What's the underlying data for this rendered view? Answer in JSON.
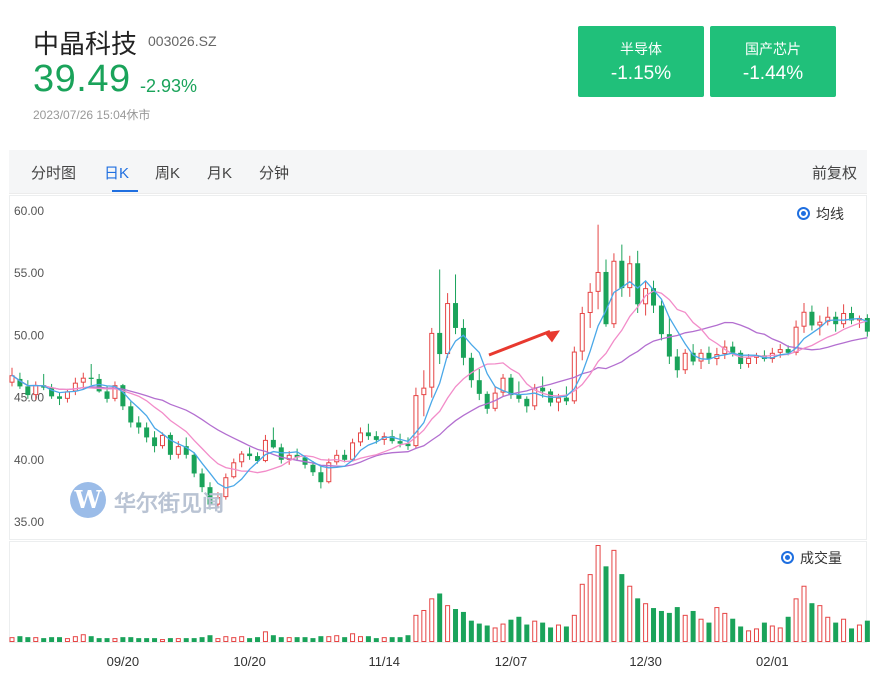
{
  "header": {
    "name": "中晶科技",
    "code": "003026.SZ",
    "price": "39.49",
    "change_pct": "-2.93%",
    "timestamp": "2023/07/26 15:04休市"
  },
  "sectors": [
    {
      "name": "半导体",
      "change": "-1.15%"
    },
    {
      "name": "国产芯片",
      "change": "-1.44%"
    }
  ],
  "tabs": [
    {
      "label": "分时图",
      "active": false
    },
    {
      "label": "日K",
      "active": true
    },
    {
      "label": "周K",
      "active": false
    },
    {
      "label": "月K",
      "active": false
    },
    {
      "label": "分钟",
      "active": false
    }
  ],
  "adjust_label": "前复权",
  "legends": {
    "ma": "均线",
    "volume": "成交量"
  },
  "watermark": {
    "logo_letter": "W",
    "text": "华尔街见闻"
  },
  "colors": {
    "up": "#e64545",
    "down": "#1aa35a",
    "ma5": "#4aa8e8",
    "ma10": "#f28cc9",
    "ma20": "#b36fd0",
    "accent": "#1f6fe0",
    "sector_bg": "#20c07a"
  },
  "chart_data": {
    "type": "candlestick",
    "y_axis": {
      "ticks": [
        "60.00",
        "55.00",
        "50.00",
        "45.00",
        "40.00",
        "35.00"
      ],
      "range": [
        35,
        60
      ]
    },
    "x_axis": {
      "labels": [
        "09/20",
        "10/20",
        "11/14",
        "12/07",
        "12/30",
        "02/01"
      ]
    },
    "annotation": "red arrow pointing at the breakout candle near 12/15",
    "candles": [
      [
        46.2,
        47.4,
        45.9,
        46.8
      ],
      [
        46.5,
        47.0,
        45.7,
        45.9
      ],
      [
        45.9,
        46.4,
        44.9,
        45.2
      ],
      [
        45.2,
        46.3,
        44.8,
        46.0
      ],
      [
        46.0,
        46.9,
        45.6,
        45.8
      ],
      [
        45.8,
        46.1,
        44.9,
        45.1
      ],
      [
        45.1,
        45.4,
        44.4,
        44.9
      ],
      [
        44.9,
        45.7,
        44.6,
        45.5
      ],
      [
        45.5,
        46.6,
        45.2,
        46.2
      ],
      [
        46.2,
        47.0,
        45.7,
        46.6
      ],
      [
        46.6,
        47.7,
        46.0,
        46.5
      ],
      [
        46.5,
        46.9,
        45.4,
        45.5
      ],
      [
        45.5,
        45.9,
        44.6,
        44.9
      ],
      [
        44.9,
        46.3,
        44.7,
        46.0
      ],
      [
        46.0,
        46.1,
        44.0,
        44.3
      ],
      [
        44.3,
        44.7,
        42.6,
        43.0
      ],
      [
        43.0,
        43.5,
        42.1,
        42.6
      ],
      [
        42.6,
        43.0,
        41.4,
        41.8
      ],
      [
        41.8,
        42.3,
        40.6,
        41.1
      ],
      [
        41.1,
        42.2,
        40.9,
        42.0
      ],
      [
        42.0,
        42.2,
        40.0,
        40.4
      ],
      [
        40.4,
        41.5,
        40.1,
        41.1
      ],
      [
        41.1,
        41.8,
        40.1,
        40.4
      ],
      [
        40.4,
        40.6,
        38.6,
        38.9
      ],
      [
        38.9,
        39.3,
        37.4,
        37.8
      ],
      [
        37.8,
        38.2,
        36.0,
        36.4
      ],
      [
        36.4,
        37.4,
        36.1,
        37.0
      ],
      [
        37.0,
        38.9,
        36.8,
        38.6
      ],
      [
        38.6,
        40.1,
        38.5,
        39.8
      ],
      [
        39.8,
        40.7,
        39.4,
        40.5
      ],
      [
        40.5,
        41.0,
        40.0,
        40.3
      ],
      [
        40.3,
        40.6,
        39.7,
        39.9
      ],
      [
        39.9,
        42.0,
        39.8,
        41.6
      ],
      [
        41.6,
        42.6,
        40.9,
        41.0
      ],
      [
        41.0,
        41.3,
        39.7,
        40.0
      ],
      [
        40.0,
        40.7,
        39.6,
        40.4
      ],
      [
        40.4,
        40.9,
        39.9,
        40.2
      ],
      [
        40.2,
        40.3,
        39.3,
        39.6
      ],
      [
        39.6,
        39.9,
        38.7,
        39.0
      ],
      [
        39.0,
        39.5,
        37.7,
        38.2
      ],
      [
        38.2,
        40.1,
        38.1,
        39.8
      ],
      [
        39.8,
        40.8,
        39.6,
        40.4
      ],
      [
        40.4,
        40.8,
        39.8,
        40.0
      ],
      [
        40.0,
        41.7,
        39.9,
        41.4
      ],
      [
        41.4,
        42.6,
        41.1,
        42.2
      ],
      [
        42.2,
        42.9,
        41.6,
        41.9
      ],
      [
        41.9,
        42.3,
        41.3,
        41.6
      ],
      [
        41.6,
        42.2,
        41.2,
        41.9
      ],
      [
        41.9,
        42.4,
        41.3,
        41.5
      ],
      [
        41.5,
        42.1,
        41.0,
        41.3
      ],
      [
        41.3,
        41.8,
        40.8,
        41.1
      ],
      [
        41.1,
        45.8,
        40.9,
        45.2
      ],
      [
        45.2,
        47.2,
        43.5,
        45.8
      ],
      [
        45.8,
        50.6,
        45.0,
        50.2
      ],
      [
        50.2,
        55.3,
        47.7,
        48.5
      ],
      [
        48.5,
        53.4,
        48.2,
        52.6
      ],
      [
        52.6,
        54.9,
        50.1,
        50.6
      ],
      [
        50.6,
        51.3,
        47.6,
        48.2
      ],
      [
        48.2,
        48.6,
        45.8,
        46.4
      ],
      [
        46.4,
        47.3,
        44.8,
        45.3
      ],
      [
        45.3,
        45.5,
        43.7,
        44.1
      ],
      [
        44.1,
        45.9,
        43.9,
        45.4
      ],
      [
        45.4,
        46.9,
        45.1,
        46.6
      ],
      [
        46.6,
        46.9,
        44.9,
        45.2
      ],
      [
        45.2,
        46.3,
        44.6,
        44.9
      ],
      [
        44.9,
        45.1,
        43.8,
        44.3
      ],
      [
        44.3,
        46.1,
        44.0,
        45.8
      ],
      [
        45.8,
        46.7,
        45.0,
        45.5
      ],
      [
        45.5,
        45.7,
        44.3,
        44.6
      ],
      [
        44.6,
        45.3,
        43.9,
        45.0
      ],
      [
        45.0,
        45.9,
        44.4,
        44.7
      ],
      [
        44.7,
        49.1,
        44.5,
        48.7
      ],
      [
        48.7,
        52.3,
        48.0,
        51.8
      ],
      [
        51.8,
        54.2,
        50.6,
        53.5
      ],
      [
        53.5,
        58.9,
        52.1,
        55.1
      ],
      [
        55.1,
        56.1,
        50.7,
        50.9
      ],
      [
        50.9,
        56.6,
        50.6,
        56.0
      ],
      [
        56.0,
        57.3,
        53.1,
        53.8
      ],
      [
        53.8,
        56.4,
        53.1,
        55.8
      ],
      [
        55.8,
        56.8,
        51.8,
        52.5
      ],
      [
        52.5,
        54.3,
        51.6,
        53.8
      ],
      [
        53.8,
        54.4,
        51.8,
        52.4
      ],
      [
        52.4,
        52.8,
        49.6,
        50.1
      ],
      [
        50.1,
        51.5,
        47.7,
        48.3
      ],
      [
        48.3,
        48.9,
        46.6,
        47.2
      ],
      [
        47.2,
        48.9,
        46.9,
        48.6
      ],
      [
        48.6,
        49.3,
        47.6,
        47.9
      ],
      [
        47.9,
        48.9,
        47.3,
        48.6
      ],
      [
        48.6,
        49.1,
        47.7,
        48.1
      ],
      [
        48.1,
        49.0,
        47.6,
        48.5
      ],
      [
        48.5,
        49.6,
        48.1,
        49.1
      ],
      [
        49.1,
        49.5,
        48.3,
        48.6
      ],
      [
        48.6,
        48.8,
        47.3,
        47.7
      ],
      [
        47.7,
        48.5,
        47.4,
        48.2
      ],
      [
        48.2,
        48.6,
        47.7,
        48.4
      ],
      [
        48.4,
        48.8,
        47.9,
        48.1
      ],
      [
        48.1,
        49.0,
        47.8,
        48.6
      ],
      [
        48.6,
        49.3,
        48.2,
        48.9
      ],
      [
        48.9,
        49.2,
        48.4,
        48.6
      ],
      [
        48.6,
        51.2,
        48.4,
        50.7
      ],
      [
        50.7,
        52.6,
        50.2,
        51.9
      ],
      [
        51.9,
        52.4,
        50.4,
        50.8
      ],
      [
        50.8,
        51.6,
        50.0,
        51.1
      ],
      [
        51.1,
        52.3,
        50.8,
        51.5
      ],
      [
        51.5,
        51.9,
        50.3,
        50.9
      ],
      [
        50.9,
        52.5,
        50.6,
        51.8
      ],
      [
        51.8,
        52.3,
        50.9,
        51.2
      ],
      [
        51.2,
        51.6,
        50.6,
        51.4
      ],
      [
        51.4,
        51.7,
        49.9,
        50.3
      ]
    ],
    "volume_relative": [
      0.05,
      0.06,
      0.05,
      0.05,
      0.04,
      0.05,
      0.05,
      0.04,
      0.06,
      0.08,
      0.06,
      0.04,
      0.04,
      0.04,
      0.05,
      0.05,
      0.04,
      0.04,
      0.04,
      0.03,
      0.04,
      0.04,
      0.04,
      0.04,
      0.05,
      0.07,
      0.04,
      0.06,
      0.05,
      0.06,
      0.04,
      0.05,
      0.11,
      0.07,
      0.05,
      0.05,
      0.05,
      0.05,
      0.04,
      0.06,
      0.06,
      0.07,
      0.05,
      0.09,
      0.06,
      0.06,
      0.04,
      0.05,
      0.05,
      0.05,
      0.07,
      0.28,
      0.33,
      0.45,
      0.5,
      0.38,
      0.34,
      0.31,
      0.22,
      0.19,
      0.17,
      0.15,
      0.19,
      0.23,
      0.26,
      0.18,
      0.22,
      0.2,
      0.15,
      0.18,
      0.16,
      0.28,
      0.6,
      0.7,
      1.0,
      0.78,
      0.95,
      0.7,
      0.58,
      0.45,
      0.4,
      0.35,
      0.32,
      0.3,
      0.36,
      0.28,
      0.32,
      0.24,
      0.2,
      0.36,
      0.3,
      0.24,
      0.16,
      0.12,
      0.14,
      0.2,
      0.17,
      0.15,
      0.26,
      0.45,
      0.58,
      0.4,
      0.38,
      0.26,
      0.2,
      0.24,
      0.14,
      0.18,
      0.22
    ]
  }
}
